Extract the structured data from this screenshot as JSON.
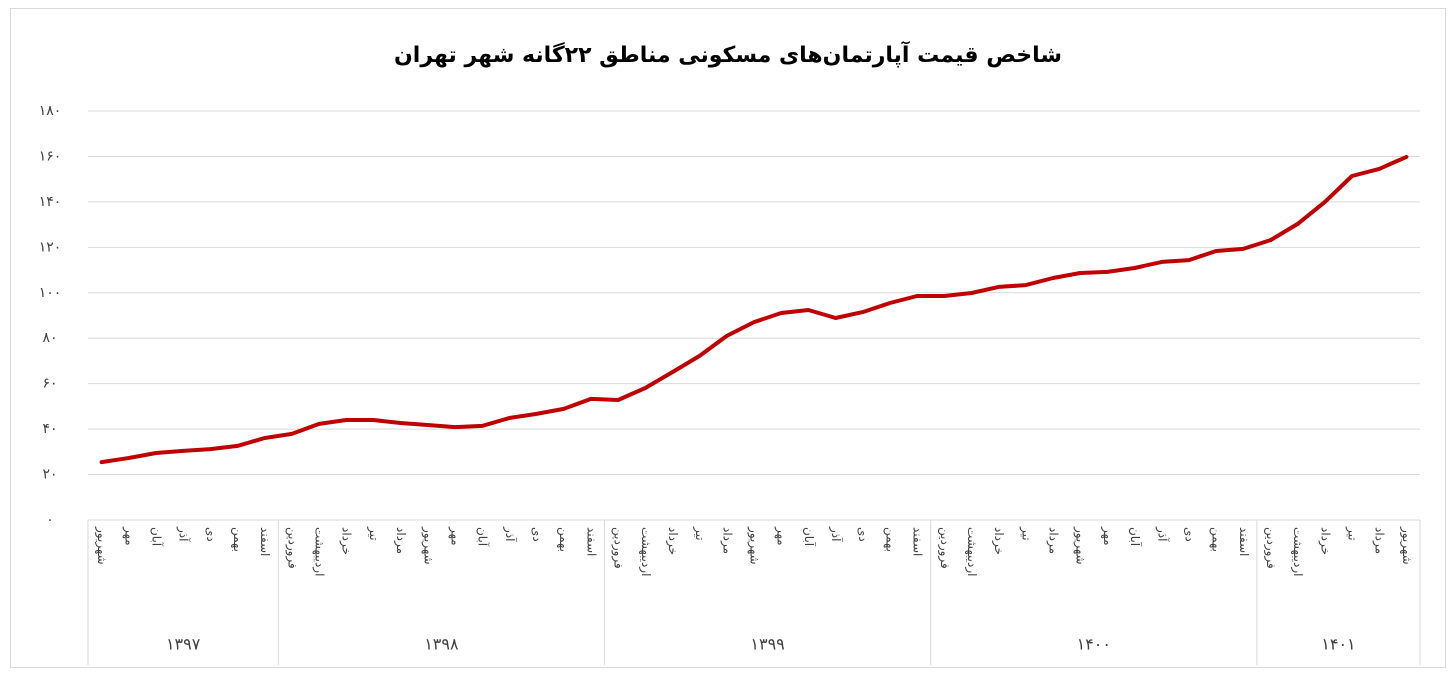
{
  "chart_data": {
    "type": "line",
    "title": "شاخص قیمت آپارتمان‌های مسکونی مناطق ۲۲گانه شهر تهران",
    "categories": [
      "شهریور",
      "مهر",
      "آبان",
      "آذر",
      "دی",
      "بهمن",
      "اسفند",
      "فروردین",
      "اردیبهشت",
      "خرداد",
      "تیر",
      "مرداد",
      "شهریور",
      "مهر",
      "آبان",
      "آذر",
      "دی",
      "بهمن",
      "اسفند",
      "فروردین",
      "اردیبهشت",
      "خرداد",
      "تیر",
      "مرداد",
      "شهریور",
      "مهر",
      "آبان",
      "آذر",
      "دی",
      "بهمن",
      "اسفند",
      "فروردین",
      "اردیبهشت",
      "خرداد",
      "تیر",
      "مرداد",
      "شهریور",
      "مهر",
      "آبان",
      "آذر",
      "دی",
      "بهمن",
      "اسفند",
      "فروردین",
      "اردیبهشت",
      "خرداد",
      "تیر",
      "مرداد",
      "شهریور"
    ],
    "groups": [
      {
        "label": "۱۳۹۷",
        "count": 7
      },
      {
        "label": "۱۳۹۸",
        "count": 12
      },
      {
        "label": "۱۳۹۹",
        "count": 12
      },
      {
        "label": "۱۴۰۰",
        "count": 12
      },
      {
        "label": "۱۴۰۱",
        "count": 6
      }
    ],
    "values": [
      25.5,
      27.3,
      29.5,
      30.4,
      31.2,
      32.6,
      36.1,
      37.9,
      42.3,
      44,
      44,
      42.7,
      41.8,
      40.9,
      41.4,
      44.9,
      46.7,
      48.9,
      53.3,
      52.8,
      58.1,
      65.1,
      72.2,
      81,
      87.1,
      91.1,
      92.4,
      88.9,
      91.5,
      95.5,
      98.6,
      98.6,
      99.9,
      102.6,
      103.4,
      106.5,
      108.7,
      109.2,
      110.9,
      113.6,
      114.4,
      118.4,
      119.3,
      123.2,
      130.3,
      140,
      151.4,
      154.5,
      159.8
    ],
    "color": "#c00000",
    "ylim": [
      0,
      180
    ],
    "yticks": [
      {
        "value": 0,
        "label": "۰"
      },
      {
        "value": 20,
        "label": "۲۰"
      },
      {
        "value": 40,
        "label": "۴۰"
      },
      {
        "value": 60,
        "label": "۶۰"
      },
      {
        "value": 80,
        "label": "۸۰"
      },
      {
        "value": 100,
        "label": "۱۰۰"
      },
      {
        "value": 120,
        "label": "۱۲۰"
      },
      {
        "value": 140,
        "label": "۱۴۰"
      },
      {
        "value": 160,
        "label": "۱۶۰"
      },
      {
        "value": 180,
        "label": "۱۸۰"
      }
    ],
    "grid": true
  }
}
